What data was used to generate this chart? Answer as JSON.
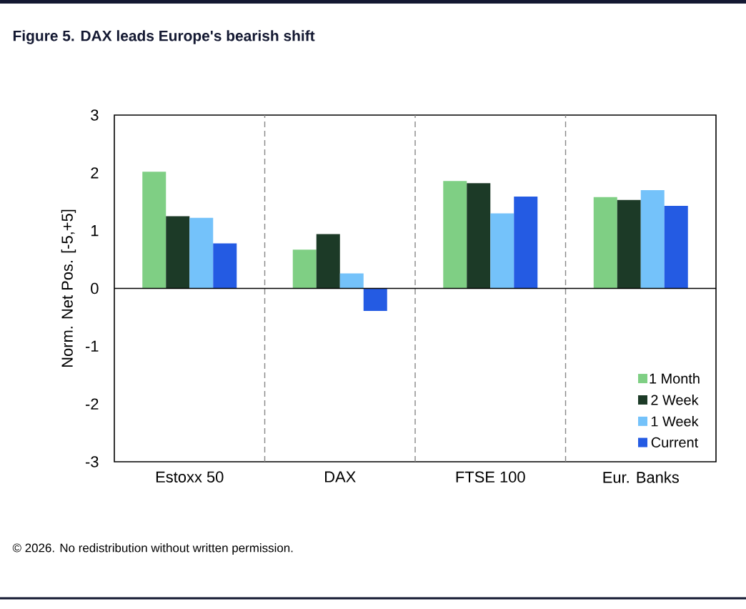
{
  "chart_data": {
    "type": "bar",
    "title": "Figure 5. DAX leads Europe's bearish shift",
    "ylabel": "Norm. Net Pos. [-5,+5]",
    "categories": [
      "Estoxx 50",
      "DAX",
      "FTSE 100",
      "Eur. Banks"
    ],
    "series": [
      {
        "name": "1 Month",
        "color": "#7fcf84",
        "values": [
          2.02,
          0.67,
          1.86,
          1.58
        ]
      },
      {
        "name": "2 Week",
        "color": "#1c3a27",
        "values": [
          1.25,
          0.94,
          1.82,
          1.53
        ]
      },
      {
        "name": "1 Week",
        "color": "#74c2fa",
        "values": [
          1.22,
          0.26,
          1.3,
          1.7
        ]
      },
      {
        "name": "Current",
        "color": "#245be3",
        "values": [
          0.78,
          -0.39,
          1.59,
          1.43
        ]
      }
    ],
    "ylim": [
      -3,
      3
    ],
    "yticks": [
      -3,
      -2,
      -1,
      0,
      1,
      2,
      3
    ],
    "ref_lines": [
      {
        "axis": "y",
        "value": 0,
        "color": "#000000",
        "line_style": "solid"
      }
    ],
    "legend": "bottom right",
    "grid": false,
    "annotations": [
      "© 2026. No redistribution without written permission."
    ]
  }
}
